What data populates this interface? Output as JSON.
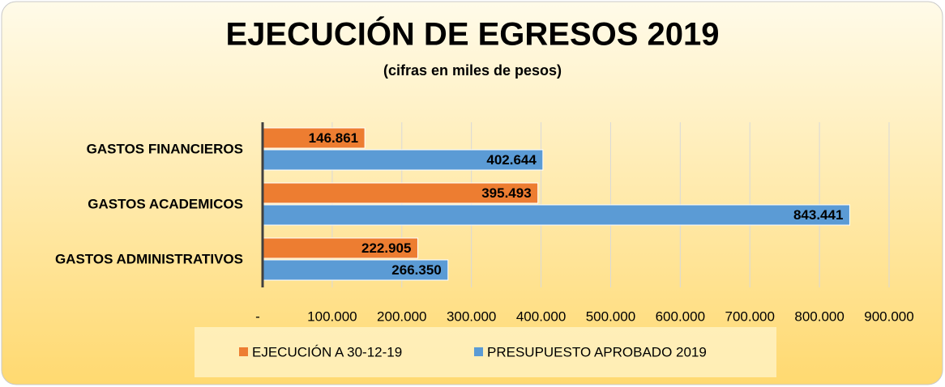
{
  "chart_data": {
    "type": "hbar",
    "title": "EJECUCIÓN DE EGRESOS 2019",
    "subtitle": "(cifras en miles de pesos)",
    "categories": [
      "GASTOS FINANCIEROS",
      "GASTOS ACADEMICOS",
      "GASTOS ADMINISTRATIVOS"
    ],
    "series": [
      {
        "name": "EJECUCIÓN A 30-12-19",
        "color": "#ed7d31",
        "values": [
          146861,
          395493,
          222905
        ],
        "value_labels": [
          "146.861",
          "395.493",
          "222.905"
        ]
      },
      {
        "name": "PRESUPUESTO APROBADO 2019",
        "color": "#5b9bd5",
        "values": [
          402644,
          843441,
          266350
        ],
        "value_labels": [
          "402.644",
          "843.441",
          "266.350"
        ]
      }
    ],
    "xlim": [
      0,
      900000
    ],
    "xticks": [
      {
        "value": 0,
        "label": "-"
      },
      {
        "value": 100000,
        "label": "100.000"
      },
      {
        "value": 200000,
        "label": "200.000"
      },
      {
        "value": 300000,
        "label": "300.000"
      },
      {
        "value": 400000,
        "label": "400.000"
      },
      {
        "value": 500000,
        "label": "500.000"
      },
      {
        "value": 600000,
        "label": "600.000"
      },
      {
        "value": 700000,
        "label": "700.000"
      },
      {
        "value": 800000,
        "label": "800.000"
      },
      {
        "value": 900000,
        "label": "900.000"
      }
    ],
    "grid": true,
    "legend": "bottom"
  }
}
